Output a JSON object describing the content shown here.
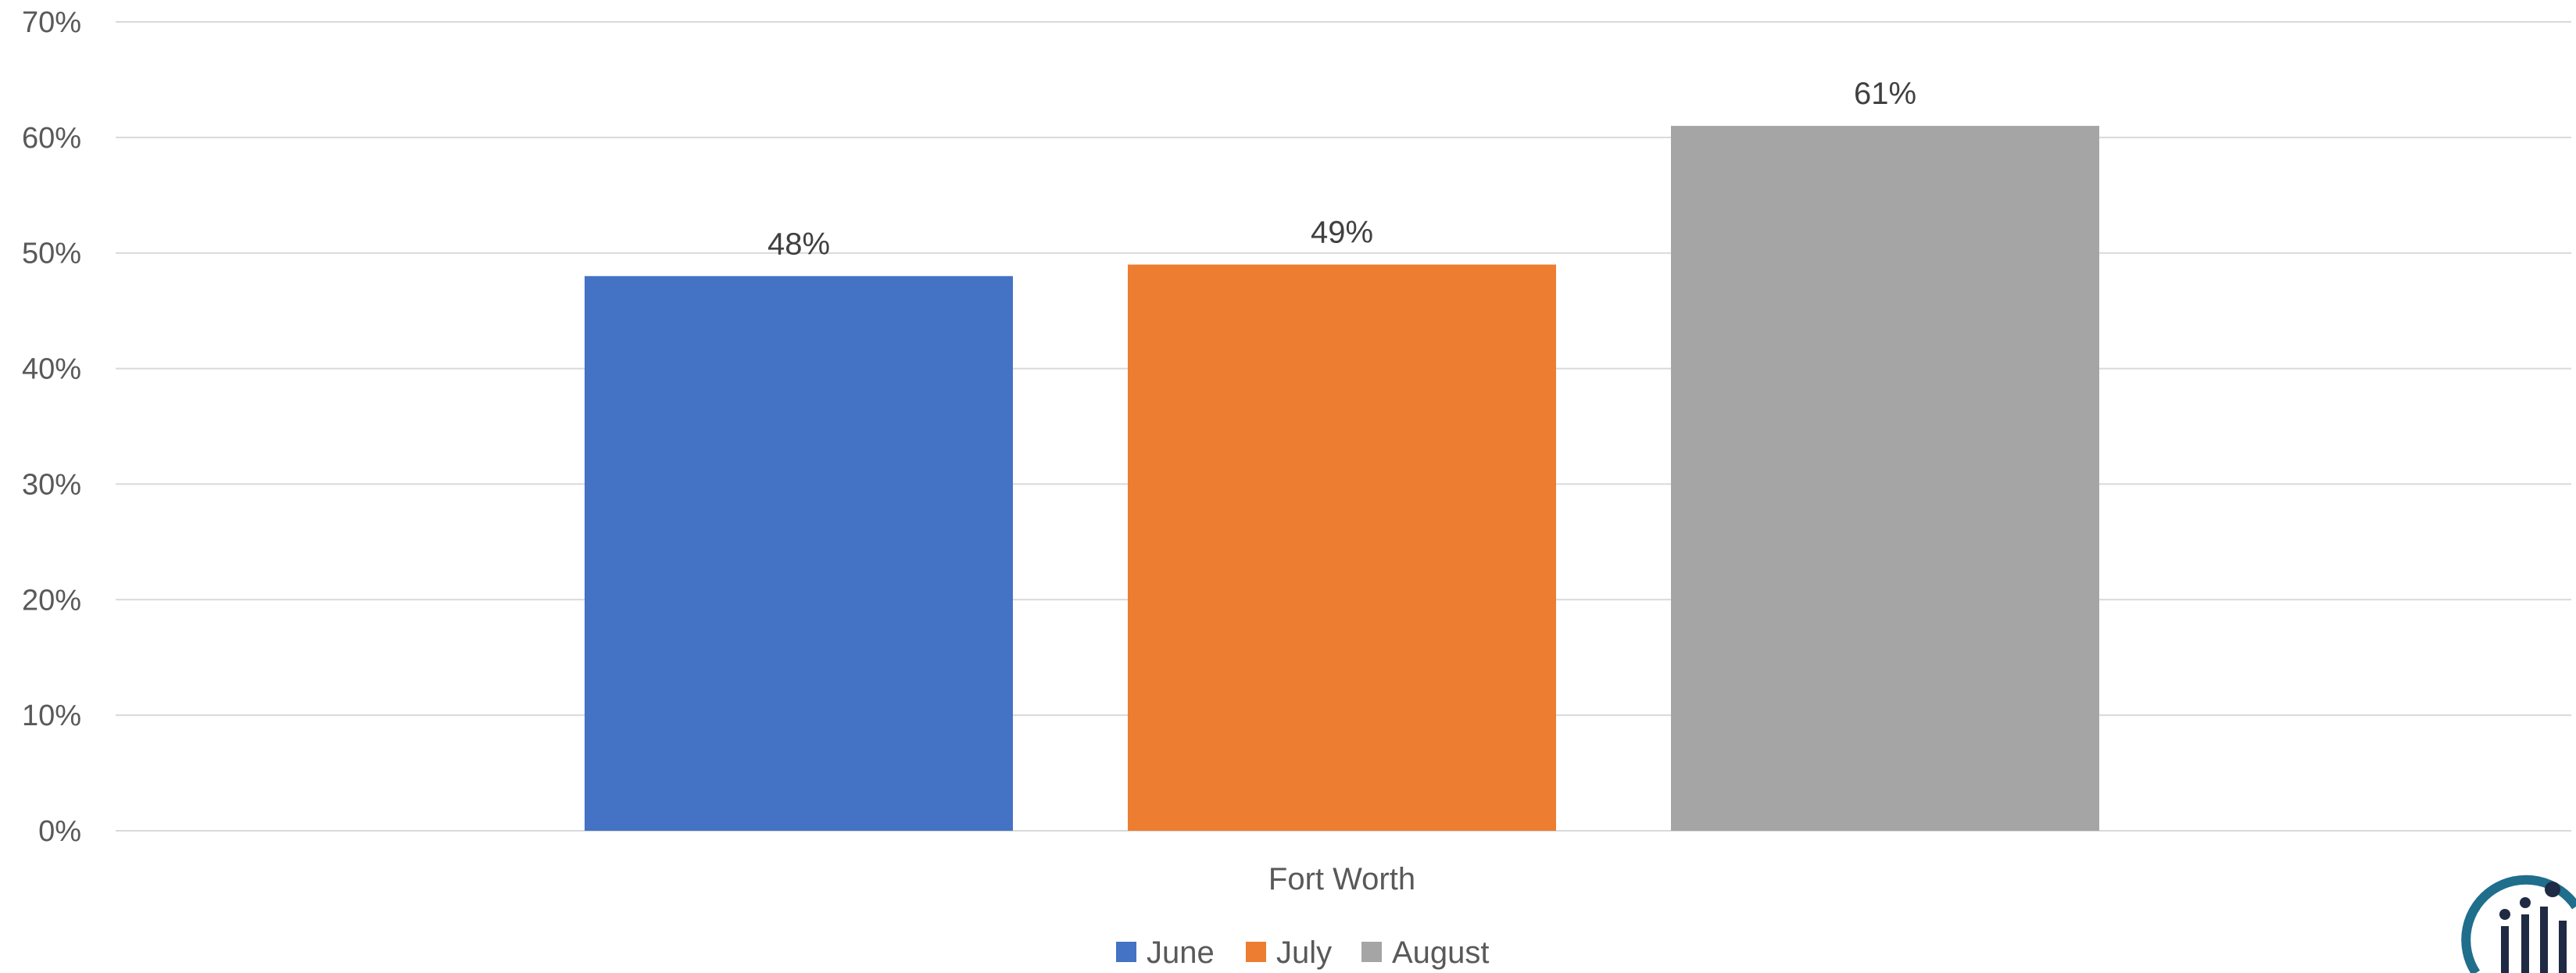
{
  "chart_data": {
    "type": "bar",
    "categories": [
      "Fort Worth"
    ],
    "series": [
      {
        "name": "June",
        "values": [
          48
        ],
        "color": "#4472C4",
        "data_label": "48%"
      },
      {
        "name": "July",
        "values": [
          49
        ],
        "color": "#ED7D31",
        "data_label": "49%"
      },
      {
        "name": "August",
        "values": [
          61
        ],
        "color": "#A5A5A5",
        "data_label": "61%"
      }
    ],
    "title": "",
    "xlabel": "",
    "ylabel": "",
    "ylim": [
      0,
      70
    ],
    "yticks": [
      0,
      10,
      20,
      30,
      40,
      50,
      60,
      70
    ],
    "ytick_labels": [
      "0%",
      "10%",
      "20%",
      "30%",
      "40%",
      "50%",
      "60%",
      "70%"
    ],
    "grid": true,
    "legend_position": "bottom"
  },
  "logo": {
    "name": "ili-logo-icon"
  }
}
